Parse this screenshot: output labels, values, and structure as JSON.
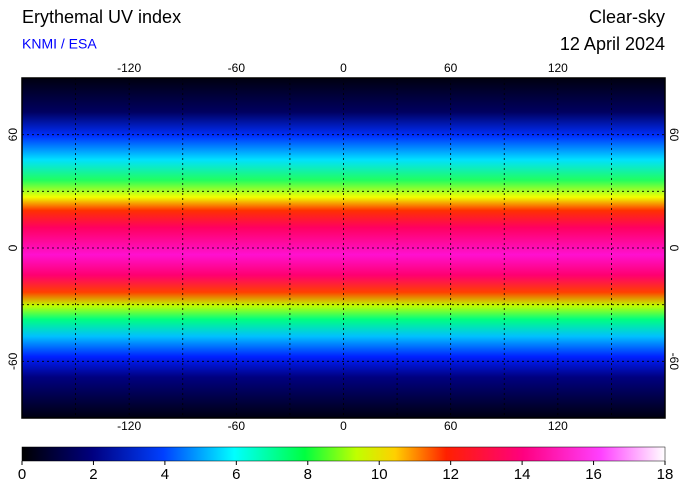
{
  "header": {
    "title": "Erythemal UV index",
    "source": "KNMI / ESA",
    "condition": "Clear-sky",
    "date": "12 April 2024"
  },
  "map": {
    "lon_range": [
      -180,
      180
    ],
    "lat_range": [
      -90,
      90
    ],
    "lon_ticks": [
      -120,
      -60,
      0,
      60,
      120
    ],
    "lat_ticks": [
      -60,
      0,
      60
    ]
  },
  "colorbar": {
    "range": [
      0,
      18
    ],
    "ticks": [
      0,
      2,
      4,
      6,
      8,
      10,
      12,
      14,
      16,
      18
    ]
  }
}
